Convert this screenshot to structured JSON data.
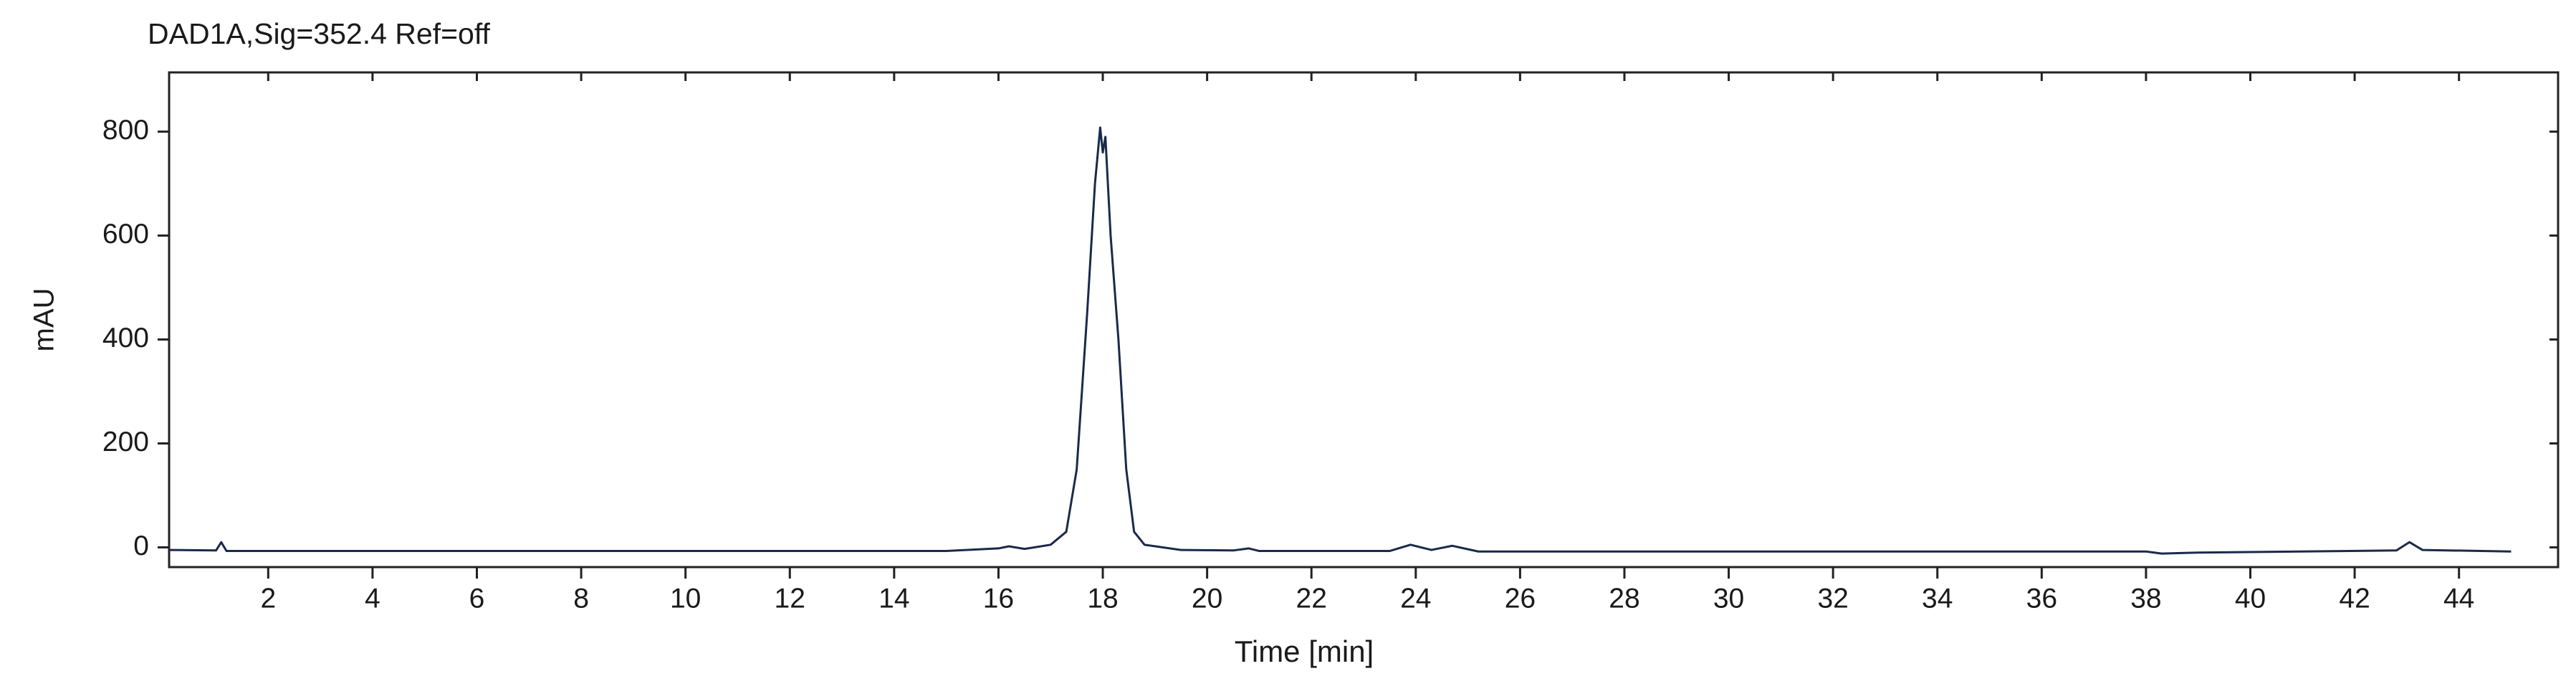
{
  "chart_data": {
    "type": "line",
    "title": "DAD1A,Sig=352.4  Ref=off",
    "x_label": "Time [min]",
    "y_label": "mAU",
    "x": [
      0.1,
      1.0,
      1.1,
      1.2,
      5,
      10,
      15,
      16.0,
      16.2,
      16.5,
      17.0,
      17.3,
      17.5,
      17.7,
      17.85,
      17.95,
      18.0,
      18.05,
      18.15,
      18.3,
      18.45,
      18.6,
      18.8,
      19.5,
      20.5,
      20.8,
      21.0,
      23.5,
      23.9,
      24.3,
      24.7,
      25.2,
      30,
      38.0,
      38.3,
      39.0,
      42.8,
      43.05,
      43.3,
      45.0
    ],
    "series": [
      {
        "color": "#1a2a4a",
        "values": [
          -5,
          -6,
          10,
          -7,
          -7,
          -7,
          -7,
          -2,
          2,
          -3,
          5,
          30,
          150,
          450,
          700,
          808,
          760,
          790,
          600,
          400,
          150,
          30,
          5,
          -5,
          -6,
          -2,
          -7,
          -7,
          5,
          -5,
          3,
          -8,
          -8,
          -8,
          -12,
          -10,
          -6,
          10,
          -5,
          -8
        ]
      }
    ],
    "xlim": [
      0.1,
      45.9
    ],
    "ylim": [
      -38,
      914
    ],
    "xticks": [
      2,
      4,
      6,
      8,
      10,
      12,
      14,
      16,
      18,
      20,
      22,
      24,
      26,
      28,
      30,
      32,
      34,
      36,
      38,
      40,
      42,
      44
    ],
    "yticks": [
      0,
      200,
      400,
      600,
      800
    ]
  }
}
